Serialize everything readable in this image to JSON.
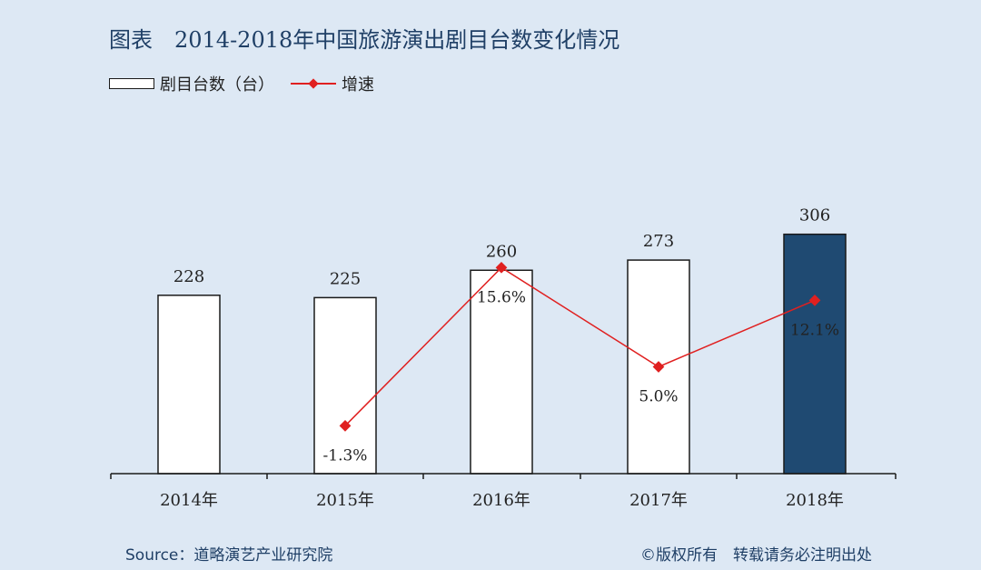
{
  "title": "图表　2014-2018年中国旅游演出剧目台数变化情况",
  "legend": {
    "bar_label": "剧目台数（台）",
    "line_label": "增速"
  },
  "footer": {
    "source": "Source：道略演艺产业研究院",
    "copyright": "©版权所有　转载请务必注明出处"
  },
  "colors": {
    "background": "#dde8f4",
    "bar_fill": "#ffffff",
    "bar_highlight": "#1f4a72",
    "bar_stroke": "#1a1a1a",
    "line": "#e02020",
    "title": "#1f3f66"
  },
  "chart_data": {
    "type": "bar",
    "categories": [
      "2014年",
      "2015年",
      "2016年",
      "2017年",
      "2018年"
    ],
    "series": [
      {
        "name": "剧目台数（台）",
        "type": "bar",
        "values": [
          228,
          225,
          260,
          273,
          306
        ],
        "labels": [
          "228",
          "225",
          "260",
          "273",
          "306"
        ],
        "highlight_index": 4
      },
      {
        "name": "增速",
        "type": "line",
        "values": [
          null,
          -1.3,
          15.6,
          5.0,
          12.1
        ],
        "labels": [
          "",
          "-1.3%",
          "15.6%",
          "5.0%",
          "12.1%"
        ]
      }
    ],
    "grid": false,
    "legend_position": "top-left"
  }
}
